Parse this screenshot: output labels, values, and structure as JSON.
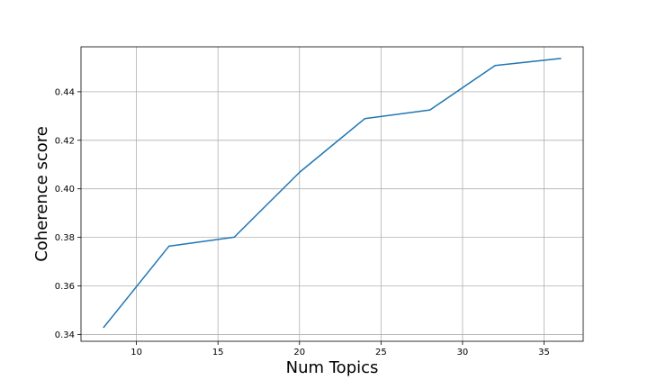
{
  "chart_data": {
    "type": "line",
    "title": "",
    "xlabel": "Num Topics",
    "ylabel": "Coherence score",
    "xlim": [
      6.6,
      37.4
    ],
    "ylim": [
      0.3372,
      0.4585
    ],
    "xticks": [
      10,
      15,
      20,
      25,
      30,
      35
    ],
    "xtick_labels": [
      "10",
      "15",
      "20",
      "25",
      "30",
      "35"
    ],
    "yticks": [
      0.34,
      0.36,
      0.38,
      0.4,
      0.42,
      0.44
    ],
    "ytick_labels": [
      "0.34",
      "0.36",
      "0.38",
      "0.40",
      "0.42",
      "0.44"
    ],
    "grid": true,
    "series": [
      {
        "color": "#1f77b4",
        "x": [
          8,
          12,
          16,
          20,
          24,
          28,
          32,
          36
        ],
        "y": [
          0.343,
          0.3764,
          0.3801,
          0.4068,
          0.4289,
          0.4325,
          0.4508,
          0.4537
        ]
      }
    ]
  }
}
